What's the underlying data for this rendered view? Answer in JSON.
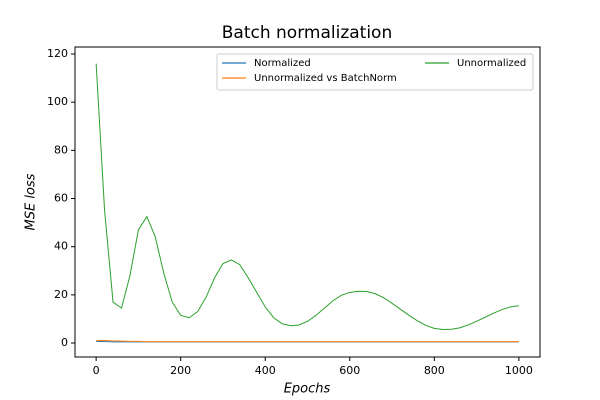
{
  "chart_data": {
    "type": "line",
    "title": "Batch normalization",
    "x_label": "Epochs",
    "y_label": "MSE loss",
    "x": [
      0,
      20,
      40,
      60,
      80,
      100,
      120,
      140,
      160,
      180,
      200,
      220,
      240,
      260,
      280,
      300,
      320,
      340,
      360,
      380,
      400,
      420,
      440,
      460,
      480,
      500,
      520,
      540,
      560,
      580,
      600,
      620,
      640,
      660,
      680,
      700,
      720,
      740,
      760,
      780,
      800,
      820,
      840,
      860,
      880,
      900,
      920,
      940,
      960,
      980,
      1000
    ],
    "series": [
      {
        "name": "Normalized",
        "color": "#1f77b4",
        "values": [
          0.7,
          0.6,
          0.5,
          0.5,
          0.5,
          0.5,
          0.5,
          0.5,
          0.5,
          0.5,
          0.5,
          0.5,
          0.5,
          0.5,
          0.5,
          0.5,
          0.5,
          0.5,
          0.5,
          0.5,
          0.5,
          0.5,
          0.5,
          0.5,
          0.5,
          0.5,
          0.5,
          0.5,
          0.5,
          0.5,
          0.5,
          0.5,
          0.5,
          0.5,
          0.5,
          0.5,
          0.5,
          0.5,
          0.5,
          0.5,
          0.5,
          0.5,
          0.5,
          0.5,
          0.5,
          0.5,
          0.5,
          0.5,
          0.5,
          0.5,
          0.5
        ]
      },
      {
        "name": "Unnormalized vs BatchNorm",
        "color": "#ff7f0e",
        "values": [
          1.0,
          1.1,
          0.9,
          0.8,
          0.7,
          0.7,
          0.6,
          0.6,
          0.6,
          0.6,
          0.6,
          0.6,
          0.6,
          0.6,
          0.6,
          0.6,
          0.6,
          0.6,
          0.6,
          0.6,
          0.6,
          0.6,
          0.6,
          0.6,
          0.6,
          0.6,
          0.6,
          0.6,
          0.6,
          0.6,
          0.6,
          0.6,
          0.6,
          0.6,
          0.6,
          0.6,
          0.6,
          0.6,
          0.6,
          0.6,
          0.6,
          0.6,
          0.6,
          0.6,
          0.6,
          0.6,
          0.6,
          0.6,
          0.6,
          0.6,
          0.6
        ]
      },
      {
        "name": "Unnormalized",
        "color": "#2ca02c",
        "values": [
          116,
          55,
          17,
          14.5,
          28,
          47,
          52.5,
          44,
          29,
          17,
          11.5,
          10.5,
          13,
          19,
          27,
          33,
          34.5,
          32.5,
          27,
          21,
          15,
          10.5,
          8,
          7.2,
          7.5,
          9,
          11.5,
          14.5,
          17.5,
          19.8,
          21,
          21.5,
          21.4,
          20.5,
          18.8,
          16.5,
          14,
          11.5,
          9.2,
          7.3,
          6.1,
          5.6,
          5.7,
          6.3,
          7.5,
          9,
          10.7,
          12.4,
          13.9,
          15,
          15.5
        ]
      }
    ],
    "xlim": [
      -50,
      1050
    ],
    "xticks": [
      0,
      200,
      400,
      600,
      800,
      1000
    ],
    "ylim": [
      -5.8,
      122.9
    ],
    "yticks": [
      0,
      20,
      40,
      60,
      80,
      100,
      120
    ],
    "legend": "upper right",
    "grid": false
  }
}
